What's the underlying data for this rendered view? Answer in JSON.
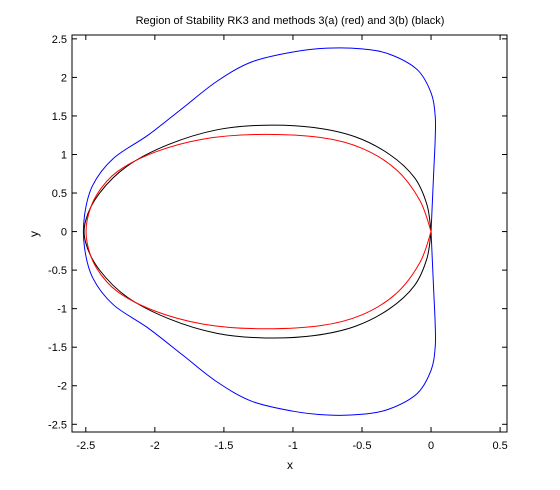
{
  "chart_data": {
    "type": "line",
    "title": "Region of Stability RK3 and methods 3(a) (red) and 3(b) (black)",
    "xlabel": "x",
    "ylabel": "y",
    "xlim": [
      -2.6,
      0.55
    ],
    "ylim": [
      -2.6,
      2.55
    ],
    "xticks": [
      -2.5,
      -2,
      -1.5,
      -1,
      -0.5,
      0,
      0.5
    ],
    "xtick_labels": [
      "-2.5",
      "-2",
      "-1.5",
      "-1",
      "-0.5",
      "0",
      "0.5"
    ],
    "yticks": [
      -2.5,
      -2,
      -1.5,
      -1,
      -0.5,
      0,
      0.5,
      1,
      1.5,
      2,
      2.5
    ],
    "ytick_labels": [
      "-2.5",
      "-2",
      "-1.5",
      "-1",
      "-0.5",
      "0",
      "0.5",
      "1",
      "1.5",
      "2",
      "2.5"
    ],
    "grid": false,
    "series": [
      {
        "color": "#0000ff",
        "points": [
          [
            0.0,
            0.0
          ],
          [
            0.01,
            0.4
          ],
          [
            0.02,
            0.8
          ],
          [
            0.03,
            1.2
          ],
          [
            0.03,
            1.5
          ],
          [
            0.0,
            1.8
          ],
          [
            -0.1,
            2.1
          ],
          [
            -0.3,
            2.3
          ],
          [
            -0.5,
            2.37
          ],
          [
            -0.75,
            2.38
          ],
          [
            -1.0,
            2.33
          ],
          [
            -1.3,
            2.2
          ],
          [
            -1.55,
            1.95
          ],
          [
            -1.8,
            1.6
          ],
          [
            -2.05,
            1.25
          ],
          [
            -2.3,
            0.95
          ],
          [
            -2.45,
            0.6
          ],
          [
            -2.51,
            0.2
          ],
          [
            -2.51,
            -0.2
          ],
          [
            -2.45,
            -0.6
          ],
          [
            -2.3,
            -0.95
          ],
          [
            -2.05,
            -1.25
          ],
          [
            -1.8,
            -1.6
          ],
          [
            -1.55,
            -1.95
          ],
          [
            -1.3,
            -2.2
          ],
          [
            -1.0,
            -2.33
          ],
          [
            -0.75,
            -2.38
          ],
          [
            -0.5,
            -2.37
          ],
          [
            -0.3,
            -2.3
          ],
          [
            -0.1,
            -2.1
          ],
          [
            0.0,
            -1.8
          ],
          [
            0.03,
            -1.5
          ],
          [
            0.03,
            -1.2
          ],
          [
            0.02,
            -0.8
          ],
          [
            0.01,
            -0.4
          ],
          [
            0.0,
            0.0
          ]
        ]
      },
      {
        "color": "#000000",
        "points": [
          [
            0.0,
            0.0
          ],
          [
            -0.03,
            0.35
          ],
          [
            -0.12,
            0.7
          ],
          [
            -0.3,
            1.0
          ],
          [
            -0.55,
            1.23
          ],
          [
            -0.85,
            1.35
          ],
          [
            -1.2,
            1.38
          ],
          [
            -1.55,
            1.32
          ],
          [
            -1.9,
            1.13
          ],
          [
            -2.2,
            0.85
          ],
          [
            -2.4,
            0.5
          ],
          [
            -2.5,
            0.15
          ],
          [
            -2.5,
            -0.15
          ],
          [
            -2.4,
            -0.5
          ],
          [
            -2.2,
            -0.85
          ],
          [
            -1.9,
            -1.13
          ],
          [
            -1.55,
            -1.32
          ],
          [
            -1.2,
            -1.38
          ],
          [
            -0.85,
            -1.35
          ],
          [
            -0.55,
            -1.23
          ],
          [
            -0.3,
            -1.0
          ],
          [
            -0.12,
            -0.7
          ],
          [
            -0.03,
            -0.35
          ],
          [
            0.0,
            0.0
          ]
        ]
      },
      {
        "color": "#ff0000",
        "points": [
          [
            0.0,
            0.0
          ],
          [
            -0.08,
            0.4
          ],
          [
            -0.25,
            0.8
          ],
          [
            -0.5,
            1.08
          ],
          [
            -0.8,
            1.22
          ],
          [
            -1.25,
            1.26
          ],
          [
            -1.65,
            1.2
          ],
          [
            -2.0,
            1.03
          ],
          [
            -2.27,
            0.78
          ],
          [
            -2.42,
            0.48
          ],
          [
            -2.49,
            0.15
          ],
          [
            -2.49,
            -0.15
          ],
          [
            -2.42,
            -0.48
          ],
          [
            -2.27,
            -0.78
          ],
          [
            -2.0,
            -1.03
          ],
          [
            -1.65,
            -1.2
          ],
          [
            -1.25,
            -1.26
          ],
          [
            -0.8,
            -1.22
          ],
          [
            -0.5,
            -1.08
          ],
          [
            -0.25,
            -0.8
          ],
          [
            -0.08,
            -0.4
          ],
          [
            0.0,
            0.0
          ]
        ]
      }
    ]
  }
}
